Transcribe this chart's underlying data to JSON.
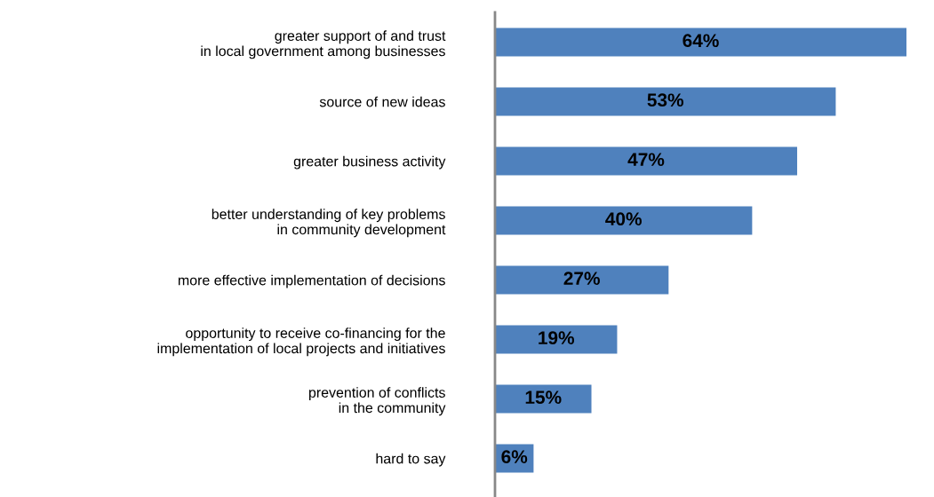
{
  "chart_data": {
    "type": "bar",
    "orientation": "horizontal",
    "categories": [
      "greater support of and trust\nin local government among businesses",
      "source of new ideas",
      "greater business activity",
      "better understanding of key problems\nin community development",
      "more effective implementation of decisions",
      "opportunity to receive co-financing for the\nimplementation of local projects and initiatives",
      "prevention of conflicts\nin the community",
      "hard to say"
    ],
    "values": [
      64,
      53,
      47,
      40,
      27,
      19,
      15,
      6
    ],
    "value_labels": [
      "64%",
      "53%",
      "47%",
      "40%",
      "27%",
      "19%",
      "15%",
      "6%"
    ],
    "color": "#4f81bd",
    "grid": false,
    "legend": false,
    "tick_labels": "y"
  }
}
